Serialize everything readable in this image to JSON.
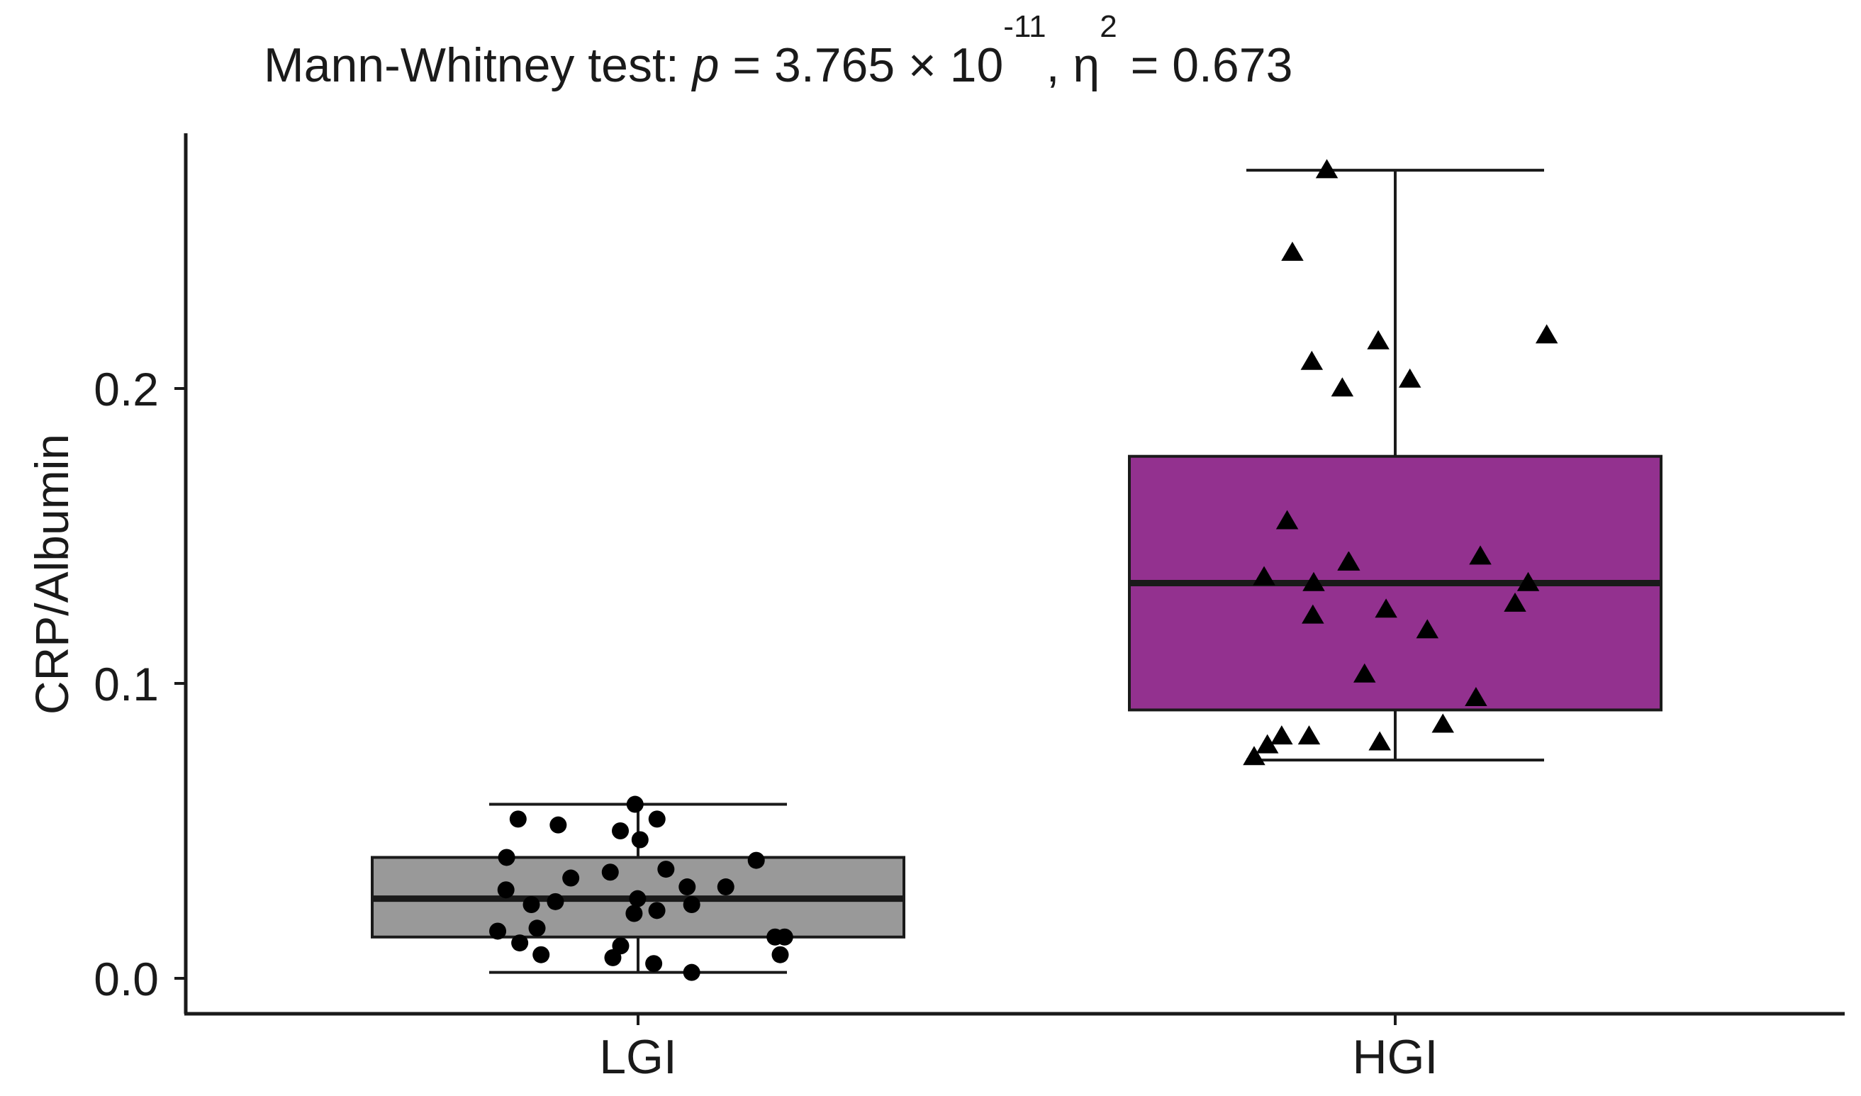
{
  "title": {
    "prefix": "Mann-Whitney test: ",
    "p_symbol": "p",
    "p_value_text": " = 3.765 × 10",
    "p_exponent": "-11",
    "eta_text": ", η",
    "eta_exponent": "2",
    "eta_value_text": " = 0.673"
  },
  "chart_data": {
    "type": "box",
    "title": "Mann-Whitney test: p = 3.765 × 10^-11, η^2 = 0.673",
    "xlabel": "",
    "ylabel": "CRP/Albumin",
    "ylim": [
      -0.013,
      0.285
    ],
    "yticks": [
      0.0,
      0.1,
      0.2
    ],
    "ytick_labels": [
      "0.0",
      "0.1",
      "0.2"
    ],
    "categories": [
      "LGI",
      "HGI"
    ],
    "boxes": [
      {
        "name": "LGI",
        "color": "#999999",
        "marker": "circle",
        "whisker_low": 0.002,
        "q1": 0.014,
        "median": 0.027,
        "q3": 0.041,
        "whisker_high": 0.059,
        "points": [
          0.059,
          0.054,
          0.054,
          0.052,
          0.05,
          0.047,
          0.041,
          0.04,
          0.037,
          0.036,
          0.034,
          0.031,
          0.031,
          0.03,
          0.027,
          0.026,
          0.025,
          0.025,
          0.023,
          0.022,
          0.017,
          0.016,
          0.014,
          0.014,
          0.012,
          0.011,
          0.008,
          0.008,
          0.007,
          0.005,
          0.002
        ]
      },
      {
        "name": "HGI",
        "color": "#93318f",
        "marker": "triangle",
        "whisker_low": 0.074,
        "q1": 0.091,
        "median": 0.134,
        "q3": 0.177,
        "whisker_high": 0.274,
        "points": [
          0.274,
          0.246,
          0.218,
          0.216,
          0.209,
          0.203,
          0.2,
          0.155,
          0.143,
          0.141,
          0.141,
          0.136,
          0.134,
          0.134,
          0.127,
          0.125,
          0.123,
          0.118,
          0.103,
          0.095,
          0.086,
          0.082,
          0.082,
          0.08,
          0.079,
          0.075
        ]
      }
    ],
    "axis_color": "#1a1a1a"
  }
}
